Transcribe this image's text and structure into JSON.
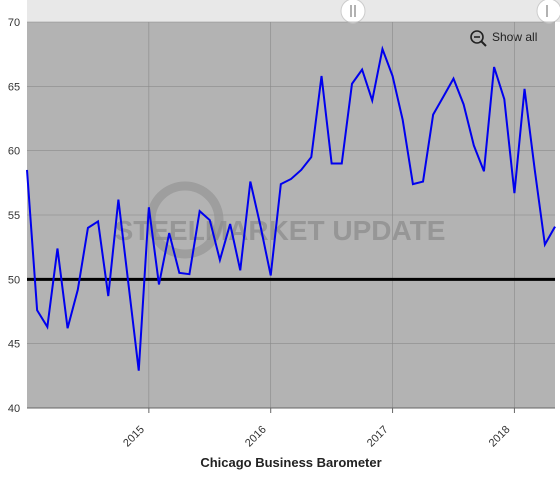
{
  "chart_data": {
    "type": "line",
    "title": "Chicago Business Barometer",
    "watermark": "STEELMARKET UPDATE",
    "button": "Show all",
    "x": [
      2014,
      2014.083,
      2014.167,
      2014.25,
      2014.333,
      2014.417,
      2014.5,
      2014.583,
      2014.667,
      2014.75,
      2014.833,
      2014.917,
      2015,
      2015.083,
      2015.167,
      2015.25,
      2015.333,
      2015.417,
      2015.5,
      2015.583,
      2015.667,
      2015.75,
      2015.833,
      2015.917,
      2016,
      2016.083,
      2016.167,
      2016.25,
      2016.333,
      2016.417,
      2016.5,
      2016.583,
      2016.667,
      2016.75,
      2016.833,
      2016.917,
      2017,
      2017.083,
      2017.167,
      2017.25,
      2017.333,
      2017.417,
      2017.5,
      2017.583,
      2017.667,
      2017.75,
      2017.833,
      2017.917,
      2018,
      2018.083,
      2018.167,
      2018.25,
      2018.333
    ],
    "series": [
      {
        "color": "#0000ee",
        "values": [
          58.5,
          47.6,
          46.3,
          52.4,
          46.2,
          49.2,
          54.0,
          54.5,
          48.7,
          56.2,
          49.6,
          42.9,
          55.6,
          49.6,
          53.6,
          50.5,
          50.4,
          55.3,
          54.6,
          51.5,
          54.3,
          50.7,
          57.6,
          54.1,
          50.3,
          57.4,
          57.8,
          58.5,
          59.5,
          65.8,
          59.0,
          59.0,
          65.2,
          66.3,
          63.9,
          67.9,
          65.8,
          62.4,
          57.4,
          57.6,
          62.8,
          64.2,
          65.6,
          63.6,
          60.4,
          58.4,
          66.5,
          64.0,
          56.7,
          64.8,
          58.5,
          52.7,
          54.1
        ]
      }
    ],
    "xlim": [
      2014,
      2018.333
    ],
    "xticks": [
      2015,
      2016,
      2017,
      2018
    ],
    "ylim": [
      40,
      70
    ],
    "yticks": [
      40,
      45,
      50,
      55,
      60,
      65,
      70
    ],
    "hline": 50,
    "grid": true
  }
}
